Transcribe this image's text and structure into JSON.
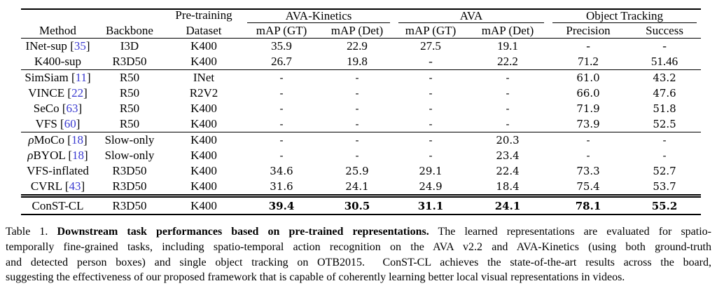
{
  "colors": {
    "citation_blue": "#3a3ad0",
    "text": "#000000",
    "rule": "#000000"
  },
  "table": {
    "group_header": {
      "pretraining": "Pre-training",
      "ava_kinetics": "AVA-Kinetics",
      "ava": "AVA",
      "object_tracking": "Object Tracking"
    },
    "sub_header": {
      "method": "Method",
      "backbone": "Backbone",
      "dataset": "Dataset",
      "map_gt_k": "mAP (GT)",
      "map_det_k": "mAP (Det)",
      "map_gt_a": "mAP (GT)",
      "map_det_a": "mAP (Det)",
      "precision": "Precision",
      "success": "Success"
    },
    "rows": [
      {
        "method": "INet-sup",
        "cite": "35",
        "backbone": "I3D",
        "dataset": "K400",
        "values": [
          "35.9",
          "22.9",
          "27.5",
          "19.1",
          "-",
          "-"
        ],
        "font": "times"
      },
      {
        "method": "K400-sup",
        "backbone": "R3D50",
        "dataset": "K400",
        "values": [
          "26.7",
          "19.8",
          "-",
          "22.2",
          "71.2",
          "51.46"
        ],
        "font": "times",
        "rule_after": true
      },
      {
        "method": "SimSiam",
        "cite": "11",
        "backbone": "R50",
        "dataset": "INet",
        "values": [
          "-",
          "-",
          "-",
          "-",
          "61.0",
          "43.2"
        ],
        "font": "cm"
      },
      {
        "method": "VINCE",
        "cite": "22",
        "backbone": "R50",
        "dataset": "R2V2",
        "values": [
          "-",
          "-",
          "-",
          "-",
          "66.0",
          "47.6"
        ],
        "font": "cm"
      },
      {
        "method": "SeCo",
        "cite": "63",
        "backbone": "R50",
        "dataset": "K400",
        "values": [
          "-",
          "-",
          "-",
          "-",
          "71.9",
          "51.8"
        ],
        "font": "cm"
      },
      {
        "method": "VFS",
        "cite": "60",
        "backbone": "R50",
        "dataset": "K400",
        "values": [
          "-",
          "-",
          "-",
          "-",
          "73.9",
          "52.5"
        ],
        "font": "cm",
        "rule_after": true
      },
      {
        "method_prefix": "ρ",
        "method": "MoCo",
        "cite": "18",
        "backbone": "Slow-only",
        "dataset": "K400",
        "values": [
          "-",
          "-",
          "-",
          "20.3",
          "-",
          "-"
        ],
        "font": "cm"
      },
      {
        "method_prefix": "ρ",
        "method": "BYOL",
        "cite": "18",
        "backbone": "Slow-only",
        "dataset": "K400",
        "values": [
          "-",
          "-",
          "-",
          "23.4",
          "-",
          "-"
        ],
        "font": "cm"
      },
      {
        "method": "VFS-inflated",
        "backbone": "R3D50",
        "dataset": "K400",
        "values": [
          "34.6",
          "25.9",
          "29.1",
          "22.4",
          "73.3",
          "52.7"
        ],
        "font": "cm"
      },
      {
        "method": "CVRL",
        "cite": "43",
        "backbone": "R3D50",
        "dataset": "K400",
        "values": [
          "31.6",
          "24.1",
          "24.9",
          "18.4",
          "75.4",
          "53.7"
        ],
        "font": "cm"
      },
      {
        "method": "ConST-CL",
        "backbone": "R3D50",
        "dataset": "K400",
        "values": [
          "39.4",
          "30.5",
          "31.1",
          "24.1",
          "78.1",
          "55.2"
        ],
        "font": "cm",
        "bold_values": true,
        "double_rule_before": true
      }
    ]
  },
  "caption": {
    "label": "Table 1.",
    "lines": [
      {
        "prefix": "Table 1. ",
        "bold": "Downstream task performances based on pre-trained representations.",
        "rest": " The learned representations are evaluated for spatio-"
      },
      {
        "text": "temporally fine-grained tasks, including spatio-temporal action recognition on the AVA v2.2 and AVA-Kinetics (using both ground-truth"
      },
      {
        "text": "and detected person boxes) and single object tracking on OTB2015.  ConST-CL achieves the state-of-the-art results across the board,"
      },
      {
        "text": "suggesting the effectiveness of our proposed framework that is capable of coherently learning better local visual representations in videos."
      }
    ]
  }
}
